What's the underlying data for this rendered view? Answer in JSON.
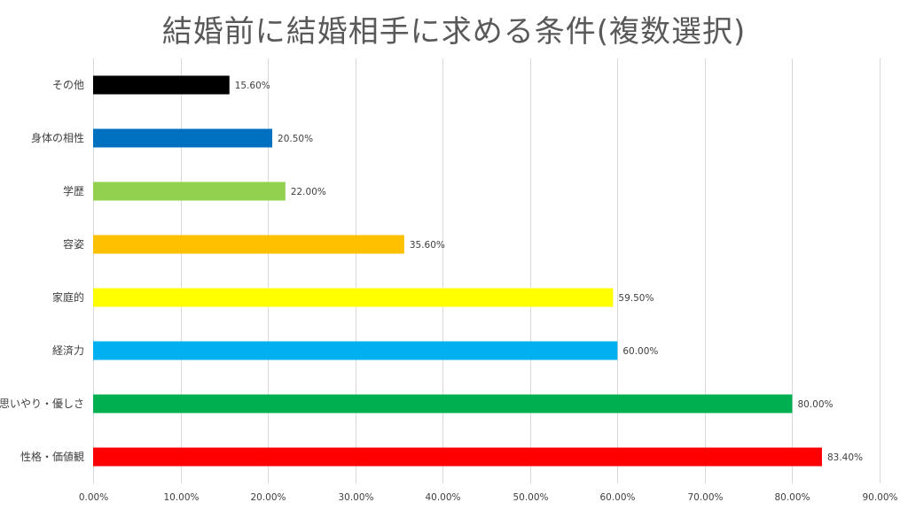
{
  "chart_data": {
    "type": "bar",
    "orientation": "horizontal",
    "title": "結婚前に結婚相手に求める条件(複数選択)",
    "categories": [
      "その他",
      "身体の相性",
      "学歴",
      "容姿",
      "家庭的",
      "経済力",
      "思いやり・優しさ",
      "性格・価値観"
    ],
    "values": [
      15.6,
      20.5,
      22.0,
      35.6,
      59.5,
      60.0,
      80.0,
      83.4
    ],
    "data_labels": [
      "15.60%",
      "20.50%",
      "22.00%",
      "35.60%",
      "59.50%",
      "60.00%",
      "80.00%",
      "83.40%"
    ],
    "colors": [
      "#000000",
      "#0070C0",
      "#92D050",
      "#FFC000",
      "#FFFF00",
      "#00B0F0",
      "#00B050",
      "#FF0000"
    ],
    "xlim": [
      0,
      90
    ],
    "x_ticks": [
      0,
      10,
      20,
      30,
      40,
      50,
      60,
      70,
      80,
      90
    ],
    "x_tick_labels": [
      "0.00%",
      "10.00%",
      "20.00%",
      "30.00%",
      "40.00%",
      "50.00%",
      "60.00%",
      "70.00%",
      "80.00%",
      "90.00%"
    ],
    "grid": true,
    "legend": "none"
  }
}
